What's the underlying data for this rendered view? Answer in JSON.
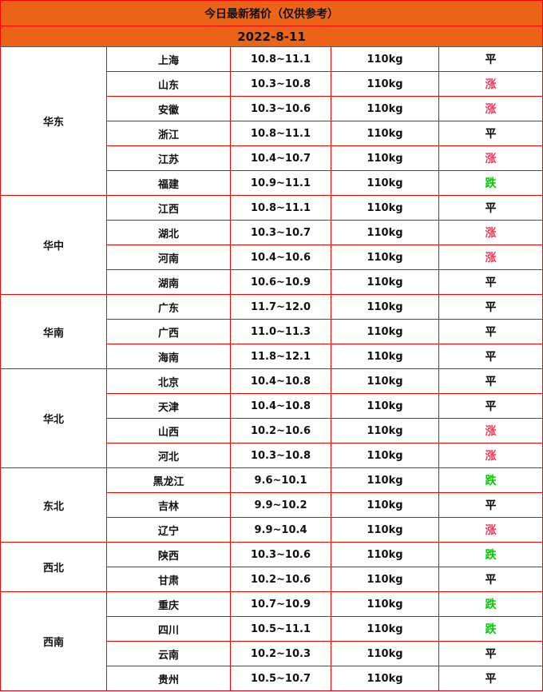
{
  "title": "今日最新猪价（仅供参考）",
  "date": "2022-8-11",
  "colors": {
    "header_bg": "#ec6417",
    "border": "#ff0000",
    "up": "#ff3355",
    "down": "#00cc00",
    "flat": "#000000"
  },
  "regions": [
    {
      "name": "华东",
      "rows": [
        {
          "province": "上海",
          "price": "10.8~11.1",
          "weight": "110kg",
          "trend": "平"
        },
        {
          "province": "山东",
          "price": "10.3~10.8",
          "weight": "110kg",
          "trend": "涨"
        },
        {
          "province": "安徽",
          "price": "10.3~10.6",
          "weight": "110kg",
          "trend": "涨"
        },
        {
          "province": "浙江",
          "price": "10.8~11.1",
          "weight": "110kg",
          "trend": "平"
        },
        {
          "province": "江苏",
          "price": "10.4~10.7",
          "weight": "110kg",
          "trend": "涨"
        },
        {
          "province": "福建",
          "price": "10.9~11.1",
          "weight": "110kg",
          "trend": "跌"
        }
      ]
    },
    {
      "name": "华中",
      "rows": [
        {
          "province": "江西",
          "price": "10.8~11.1",
          "weight": "110kg",
          "trend": "平"
        },
        {
          "province": "湖北",
          "price": "10.3~10.7",
          "weight": "110kg",
          "trend": "涨"
        },
        {
          "province": "河南",
          "price": "10.4~10.6",
          "weight": "110kg",
          "trend": "涨"
        },
        {
          "province": "湖南",
          "price": "10.6~10.9",
          "weight": "110kg",
          "trend": "平"
        }
      ]
    },
    {
      "name": "华南",
      "rows": [
        {
          "province": "广东",
          "price": "11.7~12.0",
          "weight": "110kg",
          "trend": "平"
        },
        {
          "province": "广西",
          "price": "11.0~11.3",
          "weight": "110kg",
          "trend": "平"
        },
        {
          "province": "海南",
          "price": "11.8~12.1",
          "weight": "110kg",
          "trend": "平"
        }
      ]
    },
    {
      "name": "华北",
      "rows": [
        {
          "province": "北京",
          "price": "10.4~10.8",
          "weight": "110kg",
          "trend": "平"
        },
        {
          "province": "天津",
          "price": "10.4~10.8",
          "weight": "110kg",
          "trend": "平"
        },
        {
          "province": "山西",
          "price": "10.2~10.6",
          "weight": "110kg",
          "trend": "涨"
        },
        {
          "province": "河北",
          "price": "10.3~10.8",
          "weight": "110kg",
          "trend": "涨"
        }
      ]
    },
    {
      "name": "东北",
      "rows": [
        {
          "province": "黑龙江",
          "price": "9.6~10.1",
          "weight": "110kg",
          "trend": "跌"
        },
        {
          "province": "吉林",
          "price": "9.9~10.2",
          "weight": "110kg",
          "trend": "平"
        },
        {
          "province": "辽宁",
          "price": "9.9~10.4",
          "weight": "110kg",
          "trend": "涨"
        }
      ]
    },
    {
      "name": "西北",
      "rows": [
        {
          "province": "陕西",
          "price": "10.3~10.6",
          "weight": "110kg",
          "trend": "跌"
        },
        {
          "province": "甘肃",
          "price": "10.2~10.6",
          "weight": "110kg",
          "trend": "平"
        }
      ]
    },
    {
      "name": "西南",
      "rows": [
        {
          "province": "重庆",
          "price": "10.7~10.9",
          "weight": "110kg",
          "trend": "跌"
        },
        {
          "province": "四川",
          "price": "10.5~11.1",
          "weight": "110kg",
          "trend": "跌"
        },
        {
          "province": "云南",
          "price": "10.2~10.3",
          "weight": "110kg",
          "trend": "平"
        },
        {
          "province": "贵州",
          "price": "10.5~10.7",
          "weight": "110kg",
          "trend": "平"
        }
      ]
    }
  ]
}
